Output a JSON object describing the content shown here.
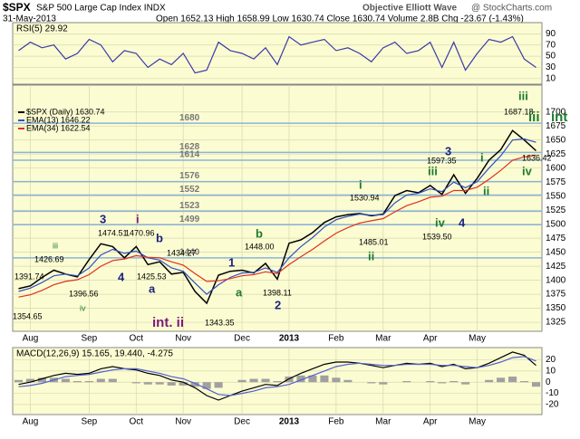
{
  "header": {
    "symbol": "$SPX",
    "name": "S&P 500 Large Cap Index INDX",
    "date": "31-May-2013",
    "quote": "Open 1652.13  High 1658.99  Low 1630.74  Close 1630.74  Volume 2.8B  Chg -23.67 (-1.43%)",
    "brand": "Objective Elliott Wave",
    "source": "@ StockCharts.com"
  },
  "chart_data": [
    {
      "type": "line",
      "label": "RSI(5) 29.92",
      "ylim": [
        0,
        110
      ],
      "yticks": [
        10,
        30,
        50,
        70,
        90
      ],
      "grid": true,
      "series": [
        {
          "color": "#3a3aa8",
          "values": [
            60,
            75,
            65,
            70,
            45,
            55,
            80,
            70,
            40,
            60,
            55,
            30,
            45,
            35,
            55,
            20,
            25,
            75,
            60,
            55,
            45,
            65,
            35,
            85,
            70,
            75,
            80,
            60,
            65,
            55,
            40,
            65,
            75,
            55,
            60,
            75,
            30,
            75,
            25,
            55,
            80,
            75,
            85,
            45,
            30
          ]
        }
      ]
    },
    {
      "type": "line",
      "ylim": [
        1309,
        1748
      ],
      "grid": true,
      "yticks": [
        1325,
        1350,
        1375,
        1400,
        1425,
        1450,
        1475,
        1500,
        1525,
        1550,
        1575,
        1600,
        1625,
        1650,
        1675,
        1700
      ],
      "categories": [
        null,
        "Aug",
        null,
        null,
        null,
        null,
        "Sep",
        null,
        null,
        null,
        "Oct",
        null,
        null,
        null,
        "Nov",
        null,
        null,
        null,
        null,
        "Dec",
        null,
        null,
        null,
        "2013",
        null,
        null,
        null,
        "Feb",
        null,
        null,
        null,
        "Mar",
        null,
        null,
        null,
        "Apr",
        null,
        null,
        null,
        "May",
        null,
        null,
        null,
        null,
        null
      ],
      "levels": [
        1680,
        1628,
        1614,
        1576,
        1552,
        1523,
        1499,
        1440
      ],
      "level_color": "#8ab4d8",
      "series": [
        {
          "name": "$SPX (Daily) 1630.74",
          "color": "#000000",
          "values": [
            1385,
            1390,
            1405,
            1418,
            1411,
            1406,
            1437,
            1465,
            1460,
            1440,
            1460,
            1428,
            1433,
            1411,
            1414,
            1380,
            1359,
            1409,
            1416,
            1418,
            1413,
            1430,
            1402,
            1466,
            1472,
            1485,
            1503,
            1513,
            1517,
            1519,
            1515,
            1518,
            1551,
            1560,
            1556,
            1569,
            1553,
            1588,
            1555,
            1582,
            1614,
            1633,
            1667,
            1650,
            1631
          ]
        },
        {
          "name": "EMA(13) 1646.22",
          "color": "#3050c0",
          "values": [
            1380,
            1386,
            1396,
            1408,
            1411,
            1408,
            1422,
            1445,
            1455,
            1448,
            1452,
            1440,
            1436,
            1422,
            1416,
            1395,
            1375,
            1392,
            1405,
            1413,
            1414,
            1422,
            1414,
            1440,
            1460,
            1476,
            1495,
            1508,
            1514,
            1518,
            1516,
            1517,
            1538,
            1552,
            1555,
            1563,
            1558,
            1575,
            1565,
            1576,
            1600,
            1622,
            1650,
            1652,
            1646
          ]
        },
        {
          "name": "EMA(34) 1622.54",
          "color": "#e03020",
          "values": [
            1370,
            1374,
            1382,
            1392,
            1398,
            1401,
            1410,
            1425,
            1435,
            1438,
            1444,
            1441,
            1440,
            1433,
            1427,
            1412,
            1398,
            1399,
            1403,
            1408,
            1410,
            1415,
            1412,
            1428,
            1442,
            1455,
            1470,
            1484,
            1494,
            1502,
            1506,
            1510,
            1522,
            1533,
            1540,
            1548,
            1550,
            1560,
            1560,
            1566,
            1580,
            1596,
            1614,
            1620,
            1623
          ]
        }
      ],
      "annotations": [
        {
          "text": "1391.74",
          "color": "#000000"
        },
        {
          "text": "1354.65",
          "color": "#000000"
        },
        {
          "text": "1426.69",
          "color": "#000000"
        },
        {
          "text": "iii",
          "color": "#1e7a2e"
        },
        {
          "text": "iv",
          "color": "#1e7a2e"
        },
        {
          "text": "1396.56",
          "color": "#000000"
        },
        {
          "text": "3",
          "color": "#1a237e"
        },
        {
          "text": "1474.51",
          "color": "#000000"
        },
        {
          "text": "4",
          "color": "#1a237e"
        },
        {
          "text": "i",
          "color": "#7a1a7a"
        },
        {
          "text": "1470.96",
          "color": "#000000"
        },
        {
          "text": "b",
          "color": "#1a237e"
        },
        {
          "text": "1425.53",
          "color": "#000000"
        },
        {
          "text": "a",
          "color": "#1a237e"
        },
        {
          "text": "1434.27",
          "color": "#000000"
        },
        {
          "text": "int. ii",
          "color": "#7a1a7a"
        },
        {
          "text": "1343.35",
          "color": "#000000"
        },
        {
          "text": "1",
          "color": "#1a237e"
        },
        {
          "text": "a",
          "color": "#1e7a2e"
        },
        {
          "text": "b",
          "color": "#1e7a2e"
        },
        {
          "text": "1448.00",
          "color": "#000000"
        },
        {
          "text": "1398.11",
          "color": "#000000"
        },
        {
          "text": "2",
          "color": "#1a237e"
        },
        {
          "text": "1530.94",
          "color": "#000000"
        },
        {
          "text": "i",
          "color": "#1e7a2e"
        },
        {
          "text": "1485.01",
          "color": "#000000"
        },
        {
          "text": "ii",
          "color": "#1e7a2e"
        },
        {
          "text": "iii",
          "color": "#1e7a2e"
        },
        {
          "text": "3",
          "color": "#1a237e"
        },
        {
          "text": "1597.35",
          "color": "#000000"
        },
        {
          "text": "iv",
          "color": "#1e7a2e"
        },
        {
          "text": "1539.50",
          "color": "#000000"
        },
        {
          "text": "4",
          "color": "#1a237e"
        },
        {
          "text": "i",
          "color": "#1e7a2e"
        },
        {
          "text": "ii",
          "color": "#1e7a2e"
        },
        {
          "text": "iii",
          "color": "#1e7a2e"
        },
        {
          "text": "1687.18",
          "color": "#000000"
        },
        {
          "text": "iii",
          "color": "#1e7a2e"
        },
        {
          "text": "int",
          "color": "#1e7a2e"
        },
        {
          "text": "1636.42",
          "color": "#000000"
        },
        {
          "text": "iv",
          "color": "#1e7a2e"
        }
      ]
    },
    {
      "type": "line",
      "label": "MACD(12,26,9) 15.165, 19.440, -4.275",
      "ylim": [
        -29,
        31
      ],
      "yticks": [
        -20,
        -10,
        0,
        10,
        20
      ],
      "grid": true,
      "categories": [
        null,
        "Aug",
        null,
        null,
        null,
        null,
        "Sep",
        null,
        null,
        null,
        "Oct",
        null,
        null,
        null,
        "Nov",
        null,
        null,
        null,
        null,
        "Dec",
        null,
        null,
        null,
        "2013",
        null,
        null,
        null,
        "Feb",
        null,
        null,
        null,
        "Mar",
        null,
        null,
        null,
        "Apr",
        null,
        null,
        null,
        "May",
        null,
        null,
        null,
        null,
        null
      ],
      "series": [
        {
          "style": "bar",
          "color": "#a0a0a0",
          "values": [
            2,
            3,
            4,
            4,
            3,
            1,
            1,
            3,
            3,
            0,
            -1,
            -2,
            -2,
            -3,
            -3,
            -4,
            -6,
            -5,
            0,
            2,
            3,
            3,
            1,
            5,
            6,
            6,
            6,
            4,
            2,
            0,
            -1,
            -2,
            0,
            1,
            0,
            1,
            -1,
            1,
            -2,
            0,
            2,
            4,
            5,
            1,
            -4
          ]
        },
        {
          "style": "line",
          "color": "#000000",
          "values": [
            -2,
            0,
            3,
            6,
            8,
            7,
            8,
            12,
            14,
            12,
            11,
            8,
            6,
            2,
            0,
            -5,
            -12,
            -16,
            -12,
            -8,
            -5,
            -2,
            -3,
            3,
            8,
            12,
            16,
            18,
            18,
            17,
            15,
            13,
            15,
            17,
            16,
            17,
            14,
            16,
            12,
            13,
            17,
            22,
            27,
            24,
            15
          ]
        },
        {
          "style": "line",
          "color": "#5060d0",
          "values": [
            -4,
            -3,
            -1,
            2,
            5,
            6,
            7,
            9,
            11,
            12,
            12,
            10,
            8,
            5,
            3,
            -1,
            -6,
            -11,
            -12,
            -10,
            -8,
            -5,
            -4,
            -2,
            2,
            6,
            10,
            14,
            16,
            17,
            16,
            15,
            15,
            16,
            16,
            16,
            15,
            15,
            14,
            13,
            15,
            18,
            22,
            23,
            19
          ]
        }
      ]
    }
  ]
}
